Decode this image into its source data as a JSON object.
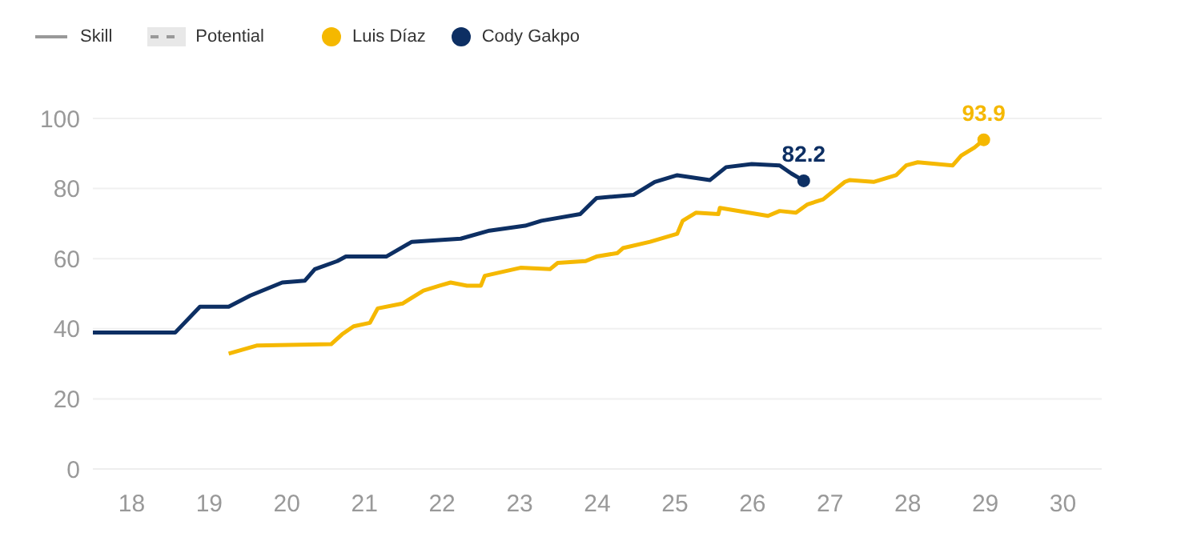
{
  "chart_data": {
    "type": "line",
    "annotations": [
      "Skill",
      "Potential"
    ],
    "legend": "top left",
    "grid": "y",
    "marker": "none",
    "line_style": "solid",
    "xlim": [
      17.5,
      30.5
    ],
    "xticks": [
      18,
      19,
      20,
      21,
      22,
      23,
      24,
      25,
      26,
      27,
      28,
      29,
      30
    ],
    "ylim": [
      0,
      100
    ],
    "yticks": [
      0,
      20,
      40,
      60,
      80,
      100
    ],
    "series": [
      {
        "name": "Luis Díaz",
        "color": "#f5b800",
        "x": [
          19.25,
          19.61,
          20.57,
          20.71,
          20.86,
          21.07,
          21.17,
          21.49,
          21.76,
          21.97,
          22.11,
          22.32,
          22.5,
          22.55,
          23.01,
          23.39,
          23.49,
          23.85,
          23.99,
          24.26,
          24.33,
          24.68,
          25.03,
          25.1,
          25.27,
          25.56,
          25.58,
          26.2,
          26.35,
          26.56,
          26.71,
          26.91,
          27.19,
          27.25,
          27.56,
          27.85,
          27.98,
          28.13,
          28.58,
          28.69,
          28.86,
          28.98
        ],
        "values": [
          32.9,
          35.2,
          35.6,
          38.4,
          40.7,
          41.7,
          45.8,
          47.2,
          50.9,
          52.3,
          53.2,
          52.3,
          52.3,
          55.1,
          57.4,
          57,
          58.8,
          59.3,
          60.6,
          61.6,
          63,
          64.8,
          67.1,
          70.8,
          73.1,
          72.7,
          74.5,
          72.2,
          73.6,
          73.1,
          75.5,
          76.9,
          81.9,
          82.4,
          81.9,
          83.8,
          86.6,
          87.5,
          86.6,
          89.4,
          91.7,
          93.9
        ],
        "value_labels": [
          null,
          null,
          null,
          null,
          null,
          null,
          null,
          null,
          null,
          null,
          null,
          null,
          null,
          null,
          null,
          null,
          null,
          null,
          null,
          null,
          null,
          null,
          null,
          null,
          null,
          null,
          null,
          null,
          null,
          null,
          null,
          null,
          null,
          null,
          null,
          null,
          null,
          null,
          null,
          null,
          null,
          "93.9"
        ]
      },
      {
        "name": "Cody Gakpo",
        "color": "#0d2f63",
        "x": [
          17.5,
          18.56,
          18.88,
          19.25,
          19.53,
          19.94,
          20.23,
          20.36,
          20.65,
          20.76,
          21.28,
          21.61,
          21.96,
          22.24,
          22.61,
          23.07,
          23.28,
          23.78,
          23.99,
          24.47,
          24.74,
          25.03,
          25.45,
          25.66,
          25.99,
          26.35,
          26.5,
          26.66
        ],
        "values": [
          38.9,
          38.9,
          46.3,
          46.3,
          49.5,
          53.2,
          53.7,
          57,
          59.3,
          60.6,
          60.6,
          64.8,
          65.3,
          65.7,
          68,
          69.4,
          70.8,
          72.7,
          77.3,
          78.2,
          81.9,
          83.8,
          82.4,
          86.1,
          87,
          86.6,
          84.3,
          82.2
        ],
        "value_labels": [
          null,
          null,
          null,
          null,
          null,
          null,
          null,
          null,
          null,
          null,
          null,
          null,
          null,
          null,
          null,
          null,
          null,
          null,
          null,
          null,
          null,
          null,
          null,
          null,
          null,
          null,
          null,
          "82.2"
        ]
      }
    ]
  }
}
